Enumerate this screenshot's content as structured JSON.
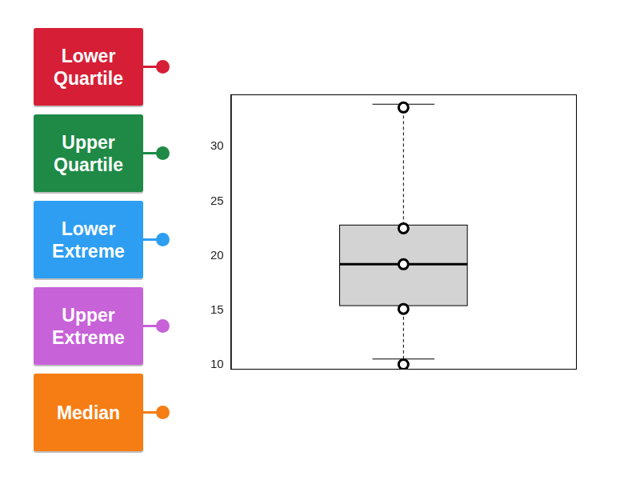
{
  "chart_data": {
    "type": "boxplot",
    "box": {
      "whisker_low": 10.5,
      "q1": 15.4,
      "median": 19.2,
      "q3": 22.8,
      "whisker_high": 33.9
    },
    "points": [
      33.6,
      22.5,
      19.2,
      15.1,
      10.0
    ],
    "marker": "circle",
    "color": "#d3d3d3",
    "ylim": [
      9.6,
      34.8
    ],
    "yticks": [
      10,
      15,
      20,
      25,
      30
    ],
    "grid": false,
    "tick_labels": "y"
  },
  "cards": [
    {
      "text": "Lower Quartile",
      "color": "#d61f36"
    },
    {
      "text": "Upper Quartile",
      "color": "#1e8a46"
    },
    {
      "text": "Lower Extreme",
      "color": "#2d9ef2"
    },
    {
      "text": "Upper Extreme",
      "color": "#c762d8"
    },
    {
      "text": "Median",
      "color": "#f57d14"
    }
  ]
}
